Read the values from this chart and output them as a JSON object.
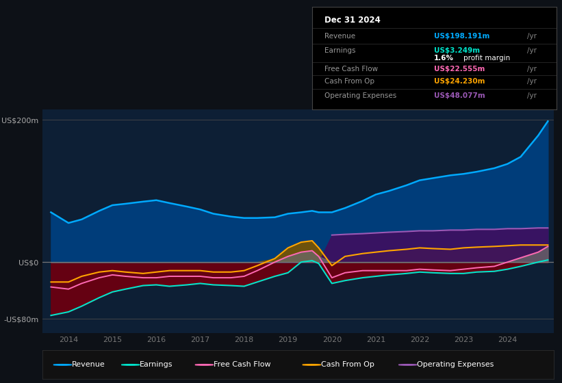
{
  "bg_color": "#0d1117",
  "plot_bg_color": "#0d1f35",
  "years": [
    2013.6,
    2014.0,
    2014.3,
    2014.7,
    2015.0,
    2015.3,
    2015.7,
    2016.0,
    2016.3,
    2016.7,
    2017.0,
    2017.3,
    2017.7,
    2018.0,
    2018.3,
    2018.7,
    2019.0,
    2019.3,
    2019.55,
    2019.7,
    2020.0,
    2020.3,
    2020.7,
    2021.0,
    2021.3,
    2021.7,
    2022.0,
    2022.3,
    2022.7,
    2023.0,
    2023.3,
    2023.7,
    2024.0,
    2024.3,
    2024.7,
    2024.92
  ],
  "revenue": [
    70,
    55,
    60,
    72,
    80,
    82,
    85,
    87,
    83,
    78,
    74,
    68,
    64,
    62,
    62,
    63,
    68,
    70,
    72,
    70,
    70,
    76,
    86,
    95,
    100,
    108,
    115,
    118,
    122,
    124,
    127,
    132,
    138,
    148,
    178,
    198
  ],
  "earnings": [
    -75,
    -70,
    -62,
    -50,
    -42,
    -38,
    -33,
    -32,
    -34,
    -32,
    -30,
    -32,
    -33,
    -34,
    -28,
    -20,
    -15,
    0,
    2,
    -2,
    -30,
    -26,
    -22,
    -20,
    -18,
    -16,
    -14,
    -15,
    -16,
    -16,
    -14,
    -13,
    -10,
    -6,
    0,
    3
  ],
  "fcf": [
    -35,
    -38,
    -30,
    -22,
    -18,
    -20,
    -22,
    -22,
    -20,
    -20,
    -20,
    -22,
    -22,
    -20,
    -12,
    0,
    8,
    14,
    16,
    8,
    -22,
    -15,
    -12,
    -12,
    -12,
    -12,
    -10,
    -11,
    -12,
    -10,
    -8,
    -6,
    0,
    6,
    14,
    22
  ],
  "cfo": [
    -28,
    -28,
    -20,
    -14,
    -12,
    -14,
    -16,
    -14,
    -12,
    -12,
    -12,
    -14,
    -14,
    -12,
    -5,
    5,
    20,
    28,
    30,
    20,
    -5,
    8,
    12,
    14,
    16,
    18,
    20,
    19,
    18,
    20,
    21,
    22,
    23,
    24,
    24,
    24
  ],
  "opex": [
    0,
    0,
    0,
    0,
    0,
    0,
    0,
    0,
    0,
    0,
    0,
    0,
    0,
    0,
    0,
    0,
    0,
    0,
    0,
    0,
    38,
    39,
    40,
    41,
    42,
    43,
    44,
    44,
    45,
    45,
    46,
    46,
    47,
    47,
    48,
    48
  ],
  "revenue_color": "#00aaff",
  "earnings_color": "#00e5cc",
  "fcf_color": "#ff69b4",
  "cfo_color": "#ffa500",
  "opex_color": "#9b59b6",
  "ylim": [
    -100,
    215
  ],
  "xlim": [
    2013.4,
    2025.05
  ],
  "xticks": [
    2014,
    2015,
    2016,
    2017,
    2018,
    2019,
    2020,
    2021,
    2022,
    2023,
    2024
  ],
  "ytick_vals": [
    200,
    0,
    -80
  ],
  "ytick_labels": [
    "US$200m",
    "US$0",
    "-US$80m"
  ],
  "info_date": "Dec 31 2024",
  "info_revenue": "US$198.191m",
  "info_earnings": "US$3.249m",
  "info_margin": "1.6%",
  "info_fcf": "US$22.555m",
  "info_cfo": "US$24.230m",
  "info_opex": "US$48.077m",
  "legend_items": [
    "Revenue",
    "Earnings",
    "Free Cash Flow",
    "Cash From Op",
    "Operating Expenses"
  ],
  "legend_colors": [
    "#00aaff",
    "#00e5cc",
    "#ff69b4",
    "#ffa500",
    "#9b59b6"
  ]
}
